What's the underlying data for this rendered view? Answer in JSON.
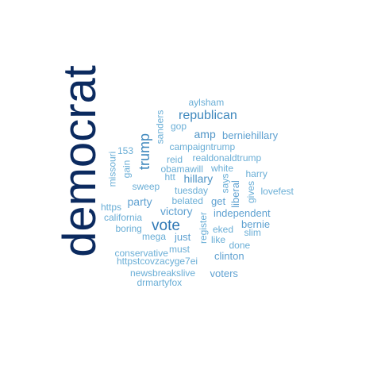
{
  "words": [
    {
      "text": "democrat",
      "color": "#0b2a5f",
      "vertical": true
    },
    {
      "text": "aylsham",
      "color": "#6aaed6",
      "vertical": false
    },
    {
      "text": "republican",
      "color": "#3f88bd",
      "vertical": false
    },
    {
      "text": "sanders",
      "color": "#6aaed6",
      "vertical": true
    },
    {
      "text": "gop",
      "color": "#6aaed6",
      "vertical": false
    },
    {
      "text": "amp",
      "color": "#4f94c6",
      "vertical": false
    },
    {
      "text": "berniehillary",
      "color": "#5fa1d1",
      "vertical": false
    },
    {
      "text": "trump",
      "color": "#3f88bd",
      "vertical": true
    },
    {
      "text": "campaigntrump",
      "color": "#6aaed6",
      "vertical": false
    },
    {
      "text": "153",
      "color": "#6aaed6",
      "vertical": false
    },
    {
      "text": "missouri",
      "color": "#6aaed6",
      "vertical": true
    },
    {
      "text": "gain",
      "color": "#6aaed6",
      "vertical": true
    },
    {
      "text": "reid",
      "color": "#6aaed6",
      "vertical": false
    },
    {
      "text": "realdonaldtrump",
      "color": "#6aaed6",
      "vertical": false
    },
    {
      "text": "obamawill",
      "color": "#6aaed6",
      "vertical": false
    },
    {
      "text": "white",
      "color": "#6aaed6",
      "vertical": false
    },
    {
      "text": "htt",
      "color": "#6aaed6",
      "vertical": false
    },
    {
      "text": "hillary",
      "color": "#4f94c6",
      "vertical": false
    },
    {
      "text": "harry",
      "color": "#6aaed6",
      "vertical": false
    },
    {
      "text": "says",
      "color": "#6aaed6",
      "vertical": true
    },
    {
      "text": "liberal",
      "color": "#5fa1d1",
      "vertical": true
    },
    {
      "text": "gives",
      "color": "#6aaed6",
      "vertical": true
    },
    {
      "text": "sweep",
      "color": "#6aaed6",
      "vertical": false
    },
    {
      "text": "tuesday",
      "color": "#6aaed6",
      "vertical": false
    },
    {
      "text": "lovefest",
      "color": "#6aaed6",
      "vertical": false
    },
    {
      "text": "party",
      "color": "#5fa1d1",
      "vertical": false
    },
    {
      "text": "belated",
      "color": "#6aaed6",
      "vertical": false
    },
    {
      "text": "get",
      "color": "#5fa1d1",
      "vertical": false
    },
    {
      "text": "https",
      "color": "#6aaed6",
      "vertical": false
    },
    {
      "text": "victory",
      "color": "#5fa1d1",
      "vertical": false
    },
    {
      "text": "register",
      "color": "#6aaed6",
      "vertical": true
    },
    {
      "text": "independent",
      "color": "#5fa1d1",
      "vertical": false
    },
    {
      "text": "california",
      "color": "#6aaed6",
      "vertical": false
    },
    {
      "text": "vote",
      "color": "#2f78b5",
      "vertical": false
    },
    {
      "text": "bernie",
      "color": "#5fa1d1",
      "vertical": false
    },
    {
      "text": "boring",
      "color": "#6aaed6",
      "vertical": false
    },
    {
      "text": "eked",
      "color": "#6aaed6",
      "vertical": false
    },
    {
      "text": "slim",
      "color": "#6aaed6",
      "vertical": false
    },
    {
      "text": "mega",
      "color": "#6aaed6",
      "vertical": false
    },
    {
      "text": "just",
      "color": "#5fa1d1",
      "vertical": false
    },
    {
      "text": "like",
      "color": "#6aaed6",
      "vertical": false
    },
    {
      "text": "done",
      "color": "#6aaed6",
      "vertical": false
    },
    {
      "text": "must",
      "color": "#6aaed6",
      "vertical": false
    },
    {
      "text": "conservative",
      "color": "#6aaed6",
      "vertical": false
    },
    {
      "text": "clinton",
      "color": "#5fa1d1",
      "vertical": false
    },
    {
      "text": "httpstcovzacyge7ei",
      "color": "#6aaed6",
      "vertical": false
    },
    {
      "text": "newsbreakslive",
      "color": "#6aaed6",
      "vertical": false
    },
    {
      "text": "voters",
      "color": "#5fa1d1",
      "vertical": false
    },
    {
      "text": "drmartyfox",
      "color": "#6aaed6",
      "vertical": false
    }
  ]
}
